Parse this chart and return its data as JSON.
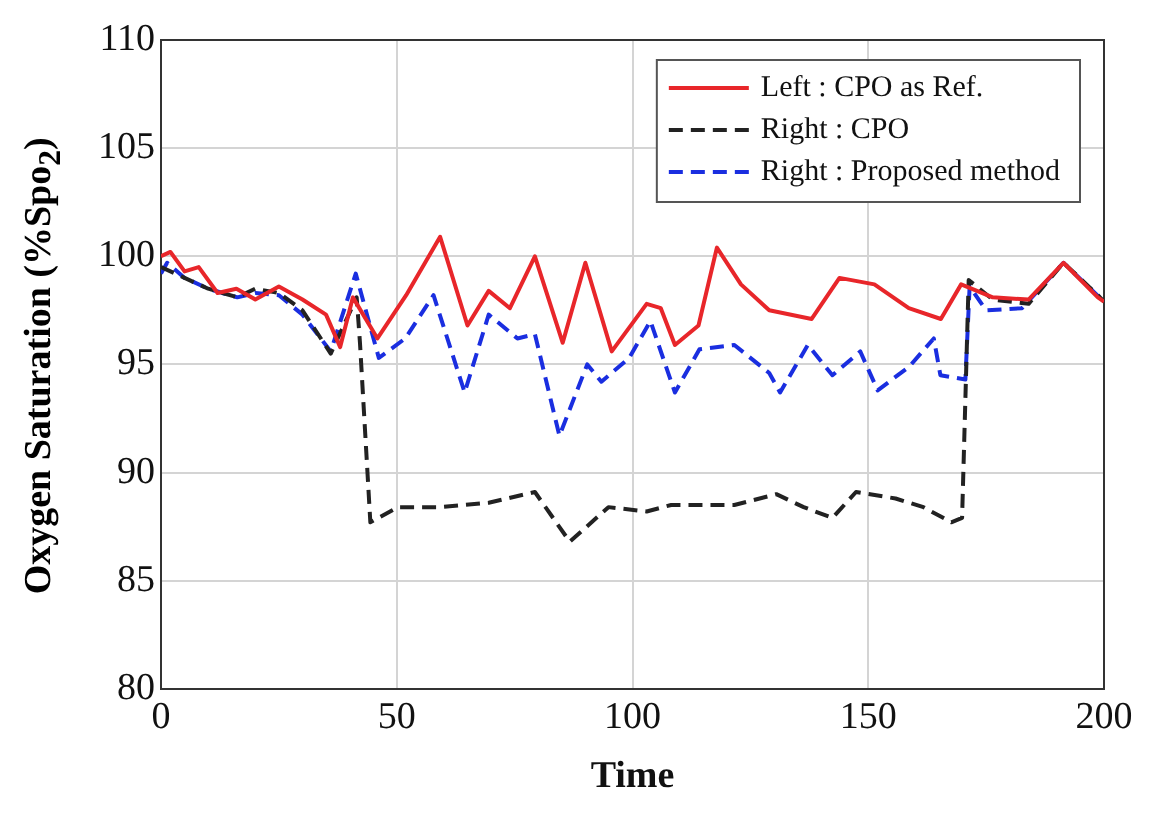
{
  "chart_data": {
    "type": "line",
    "xlabel": "Time",
    "ylabel": "Oxygen Saturation (%Spo$_{2}$)",
    "xlim": [
      0,
      200
    ],
    "xticks": [
      0,
      50,
      100,
      150,
      200
    ],
    "ylim": [
      80,
      110
    ],
    "yticks": [
      80,
      85,
      90,
      95,
      100,
      105,
      110
    ],
    "grid": true,
    "legend": "top right",
    "marker": "none",
    "series": [
      {
        "name": "Left : CPO as Ref.",
        "color": "#e8262a",
        "line_style": "solid",
        "x": [
          0,
          2,
          5,
          8,
          12,
          16,
          20,
          25,
          30,
          35,
          38,
          40.7,
          45.9,
          52,
          59.2,
          65,
          69.5,
          74,
          79.3,
          85.2,
          90,
          95.6,
          103,
          106,
          109,
          114,
          117.9,
          123,
          129,
          138,
          143.9,
          151.3,
          158.6,
          165.4,
          169.7,
          176.4,
          184,
          191.4,
          198.7,
          200
        ],
        "values": [
          100,
          100.2,
          99.3,
          99.5,
          98.3,
          98.5,
          98,
          98.6,
          98,
          97.3,
          95.8,
          98.1,
          96.2,
          98.2,
          100.9,
          96.8,
          98.4,
          97.6,
          100,
          96,
          99.7,
          95.6,
          97.8,
          97.6,
          95.9,
          96.8,
          100.4,
          98.7,
          97.5,
          97.1,
          99,
          98.7,
          97.6,
          97.1,
          98.7,
          98.1,
          98,
          99.7,
          98.1,
          97.9
        ]
      },
      {
        "name": "Right : CPO",
        "color": "#222222",
        "line_style": "dashed",
        "x": [
          0,
          5,
          10,
          16.2,
          20,
          25,
          30,
          36,
          41.5,
          42.2,
          44.4,
          50.3,
          59,
          69.5,
          79.3,
          86.7,
          94.9,
          103,
          108.2,
          121.6,
          130.5,
          136.3,
          142.4,
          147.4,
          155.8,
          161.7,
          167.6,
          169.9,
          171.3,
          176.4,
          184,
          191.4,
          198.7,
          200
        ],
        "values": [
          99.5,
          99,
          98.5,
          98.1,
          98.5,
          98.3,
          97.5,
          95.5,
          98.1,
          96,
          87.7,
          88.4,
          88.4,
          88.6,
          89.1,
          86.8,
          88.4,
          88.2,
          88.5,
          88.5,
          89,
          88.4,
          87.9,
          89.1,
          88.8,
          88.4,
          87.7,
          87.9,
          98.9,
          98,
          97.8,
          99.7,
          98.2,
          97.9
        ]
      },
      {
        "name": "Right : Proposed method",
        "color": "#1a2ee0",
        "line_style": "dashed",
        "x": [
          0,
          1.3,
          5,
          10,
          16.2,
          20,
          25,
          30,
          36,
          41.3,
          46.2,
          51.8,
          57.8,
          64.4,
          69.5,
          75.6,
          79.3,
          84.5,
          90.4,
          93.4,
          99.3,
          103.8,
          109,
          114.2,
          121.6,
          129,
          131.3,
          137.2,
          142.4,
          148.3,
          152,
          158.7,
          163.9,
          165.3,
          170.6,
          171.5,
          175,
          182.6,
          191.4,
          200
        ],
        "values": [
          99.2,
          99.7,
          99,
          98.5,
          98.1,
          98.3,
          98.2,
          97.3,
          95.6,
          99.2,
          95.3,
          96.2,
          98.2,
          93.7,
          97.3,
          96.2,
          96.4,
          91.7,
          95,
          94.2,
          95.3,
          97,
          93.7,
          95.7,
          95.9,
          94.6,
          93.7,
          95.9,
          94.5,
          95.6,
          93.8,
          94.9,
          96.2,
          94.5,
          94.3,
          98.6,
          97.5,
          97.6,
          99.7,
          97.9
        ]
      }
    ]
  }
}
